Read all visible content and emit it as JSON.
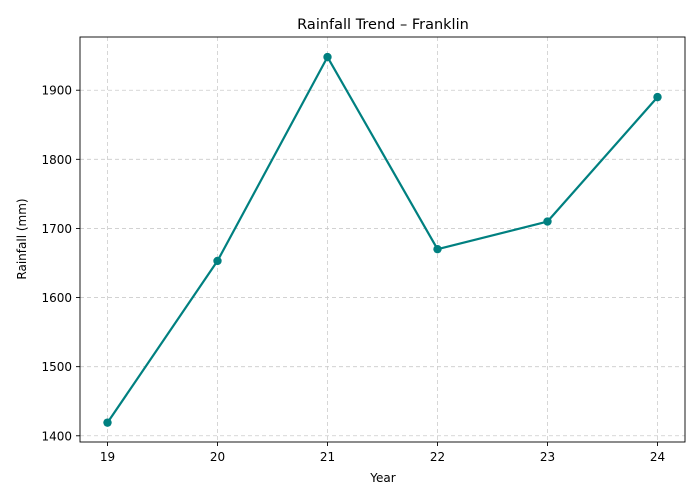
{
  "chart_data": {
    "type": "line",
    "title": "Rainfall Trend – Franklin",
    "xlabel": "Year",
    "ylabel": "Rainfall (mm)",
    "x": [
      "19",
      "20",
      "21",
      "22",
      "23",
      "24"
    ],
    "series": [
      {
        "values": [
          1419,
          1653,
          1948,
          1670,
          1710,
          1890
        ],
        "color": "#008080"
      }
    ],
    "yticks": [
      1400,
      1500,
      1600,
      1700,
      1800,
      1900
    ],
    "ylim": [
      1391,
      1977
    ],
    "xlim": [
      18.75,
      24.25
    ],
    "grid": true,
    "marker": "circle"
  }
}
